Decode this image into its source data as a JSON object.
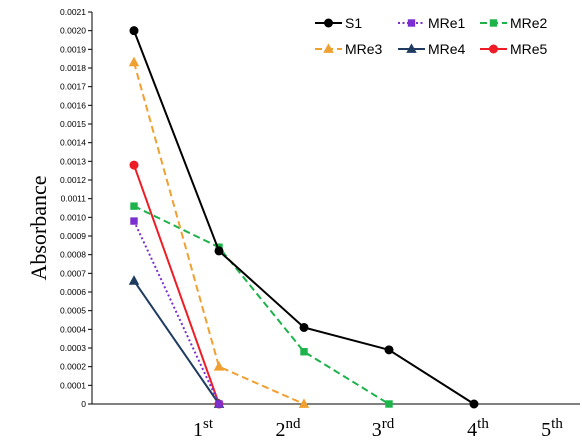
{
  "chart_data": {
    "type": "line",
    "ylabel": "Absorbance",
    "ylim": [
      0,
      0.0021
    ],
    "ytick_step": 0.0001,
    "xticks": [
      {
        "num": "1",
        "suffix": "st"
      },
      {
        "num": "2",
        "suffix": "nd"
      },
      {
        "num": "3",
        "suffix": "rd"
      },
      {
        "num": "4",
        "suffix": "th"
      },
      {
        "num": "5",
        "suffix": "th"
      }
    ],
    "x": [
      "",
      "1st",
      "2nd",
      "3rd",
      "4th"
    ],
    "legend_position": "top-right",
    "series": [
      {
        "name": "S1",
        "color": "#000000",
        "dash": "solid",
        "marker": "circle",
        "values": [
          0.002,
          0.00082,
          0.00041,
          0.00029,
          0.0
        ]
      },
      {
        "name": "MRe1",
        "color": "#7B2FD0",
        "dash": "dotted",
        "marker": "square",
        "values": [
          0.00098,
          0.0,
          null,
          null,
          null
        ]
      },
      {
        "name": "MRe2",
        "color": "#1DB34A",
        "dash": "dashed",
        "marker": "square",
        "values": [
          0.00106,
          0.00084,
          0.00028,
          0.0,
          null
        ]
      },
      {
        "name": "MRe3",
        "color": "#F0A030",
        "dash": "dashed",
        "marker": "triangle",
        "values": [
          0.00183,
          0.0002,
          0.0,
          null,
          null
        ]
      },
      {
        "name": "MRe4",
        "color": "#1F3B60",
        "dash": "solid",
        "marker": "triangle",
        "values": [
          0.00066,
          0.0,
          null,
          null,
          null
        ]
      },
      {
        "name": "MRe5",
        "color": "#EE1C24",
        "dash": "solid",
        "marker": "circle",
        "values": [
          0.00128,
          0.0,
          null,
          null,
          null
        ]
      }
    ]
  }
}
